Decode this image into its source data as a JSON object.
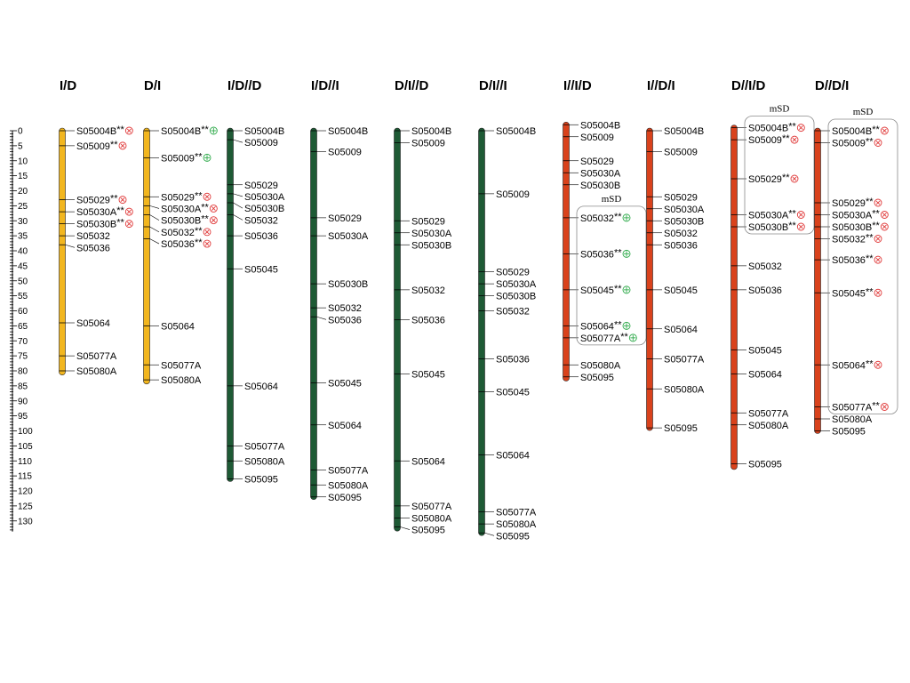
{
  "colors": {
    "yellow": "#F2B61F",
    "green": "#1E5A35",
    "red": "#D9421C",
    "marker_red": "#E03A3A",
    "marker_green": "#2EAA4A"
  },
  "axis": {
    "min": 0,
    "max": 130,
    "major_step": 5,
    "minor_step": 1,
    "ticks": [
      "0",
      "5",
      "10",
      "15",
      "20",
      "25",
      "30",
      "35",
      "40",
      "45",
      "50",
      "55",
      "60",
      "65",
      "70",
      "75",
      "80",
      "85",
      "90",
      "95",
      "100",
      "105",
      "110",
      "115",
      "120",
      "125",
      "130"
    ]
  },
  "groups": [
    {
      "title": "I/D",
      "color": "yellow",
      "length": 80.5,
      "markers": [
        {
          "name": "S05004B",
          "pos": 0,
          "stars": "**",
          "sym": "minus"
        },
        {
          "name": "S05009",
          "pos": 5,
          "stars": "**",
          "sym": "minus"
        },
        {
          "name": "S05029",
          "pos": 23,
          "stars": "**",
          "sym": "minus"
        },
        {
          "name": "S05030A",
          "pos": 27,
          "stars": "**",
          "sym": "minus"
        },
        {
          "name": "S05030B",
          "pos": 31,
          "stars": "**",
          "sym": "minus"
        },
        {
          "name": "S05032",
          "pos": 35,
          "stars": "",
          "sym": ""
        },
        {
          "name": "S05036",
          "pos": 38,
          "stars": "",
          "sym": ""
        },
        {
          "name": "S05064",
          "pos": 64,
          "stars": "",
          "sym": ""
        },
        {
          "name": "S05077A",
          "pos": 75,
          "stars": "",
          "sym": ""
        },
        {
          "name": "S05080A",
          "pos": 80,
          "stars": "",
          "sym": ""
        }
      ]
    },
    {
      "title": "D/I",
      "color": "yellow",
      "length": 83.5,
      "markers": [
        {
          "name": "S05004B",
          "pos": 0,
          "stars": "**",
          "sym": "plus"
        },
        {
          "name": "S05009",
          "pos": 9,
          "stars": "**",
          "sym": "plus"
        },
        {
          "name": "S05029",
          "pos": 22,
          "stars": "**",
          "sym": "minus"
        },
        {
          "name": "S05030A",
          "pos": 25,
          "stars": "**",
          "sym": "minus"
        },
        {
          "name": "S05030B",
          "pos": 28,
          "stars": "**",
          "sym": "minus"
        },
        {
          "name": "S05032",
          "pos": 32,
          "stars": "**",
          "sym": "minus"
        },
        {
          "name": "S05036",
          "pos": 36,
          "stars": "**",
          "sym": "minus"
        },
        {
          "name": "S05064",
          "pos": 65,
          "stars": "",
          "sym": ""
        },
        {
          "name": "S05077A",
          "pos": 78,
          "stars": "",
          "sym": ""
        },
        {
          "name": "S05080A",
          "pos": 83,
          "stars": "",
          "sym": ""
        }
      ]
    },
    {
      "title": "I/D//D",
      "color": "green",
      "length": 116,
      "markers": [
        {
          "name": "S05004B",
          "pos": 0,
          "stars": "",
          "sym": ""
        },
        {
          "name": "S05009",
          "pos": 3,
          "stars": "",
          "sym": ""
        },
        {
          "name": "S05029",
          "pos": 18,
          "stars": "",
          "sym": ""
        },
        {
          "name": "S05030A",
          "pos": 21,
          "stars": "",
          "sym": ""
        },
        {
          "name": "S05030B",
          "pos": 24,
          "stars": "",
          "sym": ""
        },
        {
          "name": "S05032",
          "pos": 28,
          "stars": "",
          "sym": ""
        },
        {
          "name": "S05036",
          "pos": 35,
          "stars": "",
          "sym": ""
        },
        {
          "name": "S05045",
          "pos": 46,
          "stars": "",
          "sym": ""
        },
        {
          "name": "S05064",
          "pos": 85,
          "stars": "",
          "sym": ""
        },
        {
          "name": "S05077A",
          "pos": 105,
          "stars": "",
          "sym": ""
        },
        {
          "name": "S05080A",
          "pos": 110,
          "stars": "",
          "sym": ""
        },
        {
          "name": "S05095",
          "pos": 116,
          "stars": "",
          "sym": ""
        }
      ]
    },
    {
      "title": "I/D//I",
      "color": "green",
      "length": 122,
      "markers": [
        {
          "name": "S05004B",
          "pos": 0,
          "stars": "",
          "sym": ""
        },
        {
          "name": "S05009",
          "pos": 7,
          "stars": "",
          "sym": ""
        },
        {
          "name": "S05029",
          "pos": 29,
          "stars": "",
          "sym": ""
        },
        {
          "name": "S05030A",
          "pos": 35,
          "stars": "",
          "sym": ""
        },
        {
          "name": "S05030B",
          "pos": 51,
          "stars": "",
          "sym": ""
        },
        {
          "name": "S05032",
          "pos": 59,
          "stars": "",
          "sym": ""
        },
        {
          "name": "S05036",
          "pos": 62,
          "stars": "",
          "sym": ""
        },
        {
          "name": "S05045",
          "pos": 84,
          "stars": "",
          "sym": ""
        },
        {
          "name": "S05064",
          "pos": 98,
          "stars": "",
          "sym": ""
        },
        {
          "name": "S05077A",
          "pos": 113,
          "stars": "",
          "sym": ""
        },
        {
          "name": "S05080A",
          "pos": 118,
          "stars": "",
          "sym": ""
        },
        {
          "name": "S05095",
          "pos": 122,
          "stars": "",
          "sym": ""
        }
      ]
    },
    {
      "title": "D/I//D",
      "color": "green",
      "length": 132.5,
      "markers": [
        {
          "name": "S05004B",
          "pos": 0,
          "stars": "",
          "sym": ""
        },
        {
          "name": "S05009",
          "pos": 4,
          "stars": "",
          "sym": ""
        },
        {
          "name": "S05029",
          "pos": 30,
          "stars": "",
          "sym": ""
        },
        {
          "name": "S05030A",
          "pos": 34,
          "stars": "",
          "sym": ""
        },
        {
          "name": "S05030B",
          "pos": 38,
          "stars": "",
          "sym": ""
        },
        {
          "name": "S05032",
          "pos": 53,
          "stars": "",
          "sym": ""
        },
        {
          "name": "S05036",
          "pos": 63,
          "stars": "",
          "sym": ""
        },
        {
          "name": "S05045",
          "pos": 81,
          "stars": "",
          "sym": ""
        },
        {
          "name": "S05064",
          "pos": 110,
          "stars": "",
          "sym": ""
        },
        {
          "name": "S05077A",
          "pos": 125,
          "stars": "",
          "sym": ""
        },
        {
          "name": "S05080A",
          "pos": 129,
          "stars": "",
          "sym": ""
        },
        {
          "name": "S05095",
          "pos": 132,
          "stars": "",
          "sym": ""
        }
      ]
    },
    {
      "title": "D/I//I",
      "color": "green",
      "length": 134,
      "markers": [
        {
          "name": "S05004B",
          "pos": 0,
          "stars": "",
          "sym": ""
        },
        {
          "name": "S05009",
          "pos": 21,
          "stars": "",
          "sym": ""
        },
        {
          "name": "S05029",
          "pos": 47,
          "stars": "",
          "sym": ""
        },
        {
          "name": "S05030A",
          "pos": 51,
          "stars": "",
          "sym": ""
        },
        {
          "name": "S05030B",
          "pos": 55,
          "stars": "",
          "sym": ""
        },
        {
          "name": "S05032",
          "pos": 60,
          "stars": "",
          "sym": ""
        },
        {
          "name": "S05036",
          "pos": 76,
          "stars": "",
          "sym": ""
        },
        {
          "name": "S05045",
          "pos": 87,
          "stars": "",
          "sym": ""
        },
        {
          "name": "S05064",
          "pos": 108,
          "stars": "",
          "sym": ""
        },
        {
          "name": "S05077A",
          "pos": 127,
          "stars": "",
          "sym": ""
        },
        {
          "name": "S05080A",
          "pos": 131,
          "stars": "",
          "sym": ""
        },
        {
          "name": "S05095",
          "pos": 134,
          "stars": "",
          "sym": ""
        }
      ]
    },
    {
      "title": "I//I/D",
      "color": "red",
      "length": 82.5,
      "msd": {
        "title": "mSD",
        "from": "S05032",
        "to": "S05077A"
      },
      "markers": [
        {
          "name": "S05004B",
          "pos": -2,
          "stars": "",
          "sym": ""
        },
        {
          "name": "S05009",
          "pos": 2,
          "stars": "",
          "sym": ""
        },
        {
          "name": "S05029",
          "pos": 10,
          "stars": "",
          "sym": ""
        },
        {
          "name": "S05030A",
          "pos": 14,
          "stars": "",
          "sym": ""
        },
        {
          "name": "S05030B",
          "pos": 18,
          "stars": "",
          "sym": ""
        },
        {
          "name": "S05032",
          "pos": 29,
          "stars": "**",
          "sym": "plus"
        },
        {
          "name": "S05036",
          "pos": 41,
          "stars": "**",
          "sym": "plus"
        },
        {
          "name": "S05045",
          "pos": 53,
          "stars": "**",
          "sym": "plus"
        },
        {
          "name": "S05064",
          "pos": 65,
          "stars": "**",
          "sym": "plus"
        },
        {
          "name": "S05077A",
          "pos": 69,
          "stars": "**",
          "sym": "plus"
        },
        {
          "name": "S05080A",
          "pos": 78,
          "stars": "",
          "sym": ""
        },
        {
          "name": "S05095",
          "pos": 82,
          "stars": "",
          "sym": ""
        }
      ]
    },
    {
      "title": "I//D/I",
      "color": "red",
      "length": 99,
      "markers": [
        {
          "name": "S05004B",
          "pos": 0,
          "stars": "",
          "sym": ""
        },
        {
          "name": "S05009",
          "pos": 7,
          "stars": "",
          "sym": ""
        },
        {
          "name": "S05029",
          "pos": 22,
          "stars": "",
          "sym": ""
        },
        {
          "name": "S05030A",
          "pos": 26,
          "stars": "",
          "sym": ""
        },
        {
          "name": "S05030B",
          "pos": 30,
          "stars": "",
          "sym": ""
        },
        {
          "name": "S05032",
          "pos": 34,
          "stars": "",
          "sym": ""
        },
        {
          "name": "S05036",
          "pos": 38,
          "stars": "",
          "sym": ""
        },
        {
          "name": "S05045",
          "pos": 53,
          "stars": "",
          "sym": ""
        },
        {
          "name": "S05064",
          "pos": 66,
          "stars": "",
          "sym": ""
        },
        {
          "name": "S05077A",
          "pos": 76,
          "stars": "",
          "sym": ""
        },
        {
          "name": "S05080A",
          "pos": 86,
          "stars": "",
          "sym": ""
        },
        {
          "name": "S05095",
          "pos": 99,
          "stars": "",
          "sym": ""
        }
      ]
    },
    {
      "title": "D//I/D",
      "color": "red",
      "length": 112,
      "msd": {
        "title": "mSD",
        "from": "S05004B",
        "to": "S05030B"
      },
      "markers": [
        {
          "name": "S05004B",
          "pos": -1,
          "stars": "**",
          "sym": "minus"
        },
        {
          "name": "S05009",
          "pos": 3,
          "stars": "**",
          "sym": "minus"
        },
        {
          "name": "S05029",
          "pos": 16,
          "stars": "**",
          "sym": "minus"
        },
        {
          "name": "S05030A",
          "pos": 28,
          "stars": "**",
          "sym": "minus"
        },
        {
          "name": "S05030B",
          "pos": 32,
          "stars": "**",
          "sym": "minus"
        },
        {
          "name": "S05032",
          "pos": 45,
          "stars": "",
          "sym": ""
        },
        {
          "name": "S05036",
          "pos": 53,
          "stars": "",
          "sym": ""
        },
        {
          "name": "S05045",
          "pos": 73,
          "stars": "",
          "sym": ""
        },
        {
          "name": "S05064",
          "pos": 81,
          "stars": "",
          "sym": ""
        },
        {
          "name": "S05077A",
          "pos": 94,
          "stars": "",
          "sym": ""
        },
        {
          "name": "S05080A",
          "pos": 98,
          "stars": "",
          "sym": ""
        },
        {
          "name": "S05095",
          "pos": 111,
          "stars": "",
          "sym": ""
        }
      ]
    },
    {
      "title": "D//D/I",
      "color": "red",
      "length": 100,
      "msd": {
        "title": "mSD",
        "from": "S05004B",
        "to": "S05077A"
      },
      "markers": [
        {
          "name": "S05004B",
          "pos": 0,
          "stars": "**",
          "sym": "minus"
        },
        {
          "name": "S05009",
          "pos": 4,
          "stars": "**",
          "sym": "minus"
        },
        {
          "name": "S05029",
          "pos": 24,
          "stars": "**",
          "sym": "minus"
        },
        {
          "name": "S05030A",
          "pos": 28,
          "stars": "**",
          "sym": "minus"
        },
        {
          "name": "S05030B",
          "pos": 32,
          "stars": "**",
          "sym": "minus"
        },
        {
          "name": "S05032",
          "pos": 36,
          "stars": "**",
          "sym": "minus"
        },
        {
          "name": "S05036",
          "pos": 43,
          "stars": "**",
          "sym": "minus"
        },
        {
          "name": "S05045",
          "pos": 54,
          "stars": "**",
          "sym": "minus"
        },
        {
          "name": "S05064",
          "pos": 78,
          "stars": "**",
          "sym": "minus"
        },
        {
          "name": "S05077A",
          "pos": 92,
          "stars": "**",
          "sym": "minus"
        },
        {
          "name": "S05080A",
          "pos": 96,
          "stars": "",
          "sym": ""
        },
        {
          "name": "S05095",
          "pos": 100,
          "stars": "",
          "sym": ""
        }
      ]
    }
  ]
}
